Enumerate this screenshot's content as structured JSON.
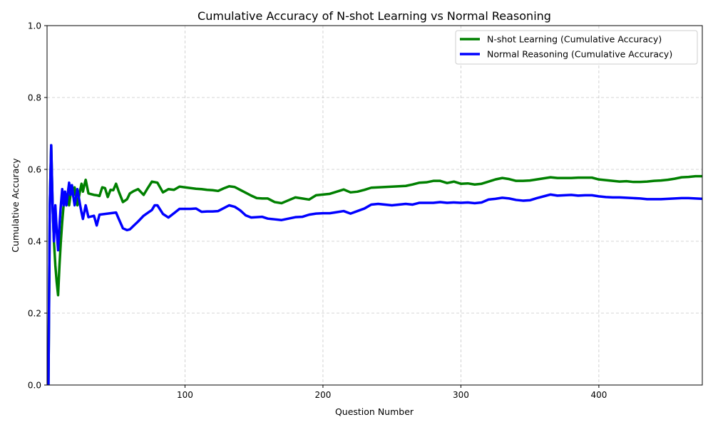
{
  "chart_data": {
    "type": "line",
    "title": "Cumulative Accuracy of N-shot Learning vs Normal Reasoning",
    "xlabel": "Question Number",
    "ylabel": "Cumulative Accuracy",
    "xlim": [
      0,
      475
    ],
    "ylim": [
      0,
      1
    ],
    "xticks": [
      100,
      200,
      300,
      400
    ],
    "yticks": [
      0.0,
      0.2,
      0.4,
      0.6,
      0.8,
      1.0
    ],
    "xtick_labels": [
      "100",
      "200",
      "300",
      "400"
    ],
    "ytick_labels": [
      "0.0",
      "0.2",
      "0.4",
      "0.6",
      "0.8",
      "1.0"
    ],
    "grid": true,
    "legend_position": "top-right",
    "series": [
      {
        "name": "N-shot Learning (Cumulative Accuracy)",
        "color": "#008000",
        "points": [
          [
            1,
            0
          ],
          [
            2,
            0.5
          ],
          [
            3,
            0.667
          ],
          [
            4,
            0.5
          ],
          [
            5,
            0.4
          ],
          [
            6,
            0.333
          ],
          [
            7,
            0.286
          ],
          [
            8,
            0.25
          ],
          [
            9,
            0.333
          ],
          [
            10,
            0.4
          ],
          [
            11,
            0.455
          ],
          [
            12,
            0.5
          ],
          [
            13,
            0.538
          ],
          [
            14,
            0.5
          ],
          [
            15,
            0.533
          ],
          [
            16,
            0.5
          ],
          [
            17,
            0.529
          ],
          [
            18,
            0.556
          ],
          [
            19,
            0.526
          ],
          [
            20,
            0.55
          ],
          [
            22,
            0.5
          ],
          [
            24,
            0.542
          ],
          [
            25,
            0.56
          ],
          [
            26,
            0.538
          ],
          [
            27,
            0.556
          ],
          [
            28,
            0.571
          ],
          [
            29,
            0.552
          ],
          [
            30,
            0.533
          ],
          [
            32,
            0.531
          ],
          [
            34,
            0.529
          ],
          [
            36,
            0.528
          ],
          [
            38,
            0.526
          ],
          [
            40,
            0.55
          ],
          [
            42,
            0.548
          ],
          [
            44,
            0.523
          ],
          [
            46,
            0.543
          ],
          [
            48,
            0.542
          ],
          [
            50,
            0.56
          ],
          [
            52,
            0.538
          ],
          [
            55,
            0.509
          ],
          [
            58,
            0.517
          ],
          [
            60,
            0.533
          ],
          [
            63,
            0.54
          ],
          [
            66,
            0.545
          ],
          [
            70,
            0.529
          ],
          [
            73,
            0.548
          ],
          [
            76,
            0.566
          ],
          [
            80,
            0.563
          ],
          [
            84,
            0.536
          ],
          [
            88,
            0.545
          ],
          [
            92,
            0.543
          ],
          [
            96,
            0.552
          ],
          [
            100,
            0.55
          ],
          [
            104,
            0.548
          ],
          [
            108,
            0.546
          ],
          [
            112,
            0.545
          ],
          [
            116,
            0.543
          ],
          [
            120,
            0.542
          ],
          [
            124,
            0.54
          ],
          [
            128,
            0.547
          ],
          [
            132,
            0.553
          ],
          [
            136,
            0.551
          ],
          [
            140,
            0.543
          ],
          [
            144,
            0.535
          ],
          [
            148,
            0.527
          ],
          [
            152,
            0.52
          ],
          [
            156,
            0.519
          ],
          [
            160,
            0.519
          ],
          [
            165,
            0.509
          ],
          [
            170,
            0.506
          ],
          [
            175,
            0.514
          ],
          [
            180,
            0.522
          ],
          [
            185,
            0.519
          ],
          [
            190,
            0.516
          ],
          [
            195,
            0.528
          ],
          [
            200,
            0.53
          ],
          [
            205,
            0.532
          ],
          [
            210,
            0.538
          ],
          [
            215,
            0.544
          ],
          [
            220,
            0.536
          ],
          [
            225,
            0.538
          ],
          [
            230,
            0.543
          ],
          [
            235,
            0.549
          ],
          [
            240,
            0.55
          ],
          [
            245,
            0.551
          ],
          [
            250,
            0.552
          ],
          [
            255,
            0.553
          ],
          [
            260,
            0.554
          ],
          [
            265,
            0.558
          ],
          [
            270,
            0.563
          ],
          [
            275,
            0.564
          ],
          [
            280,
            0.568
          ],
          [
            285,
            0.568
          ],
          [
            290,
            0.562
          ],
          [
            295,
            0.566
          ],
          [
            300,
            0.56
          ],
          [
            305,
            0.561
          ],
          [
            310,
            0.558
          ],
          [
            315,
            0.56
          ],
          [
            320,
            0.566
          ],
          [
            325,
            0.572
          ],
          [
            330,
            0.576
          ],
          [
            335,
            0.573
          ],
          [
            340,
            0.568
          ],
          [
            345,
            0.568
          ],
          [
            350,
            0.569
          ],
          [
            355,
            0.572
          ],
          [
            360,
            0.575
          ],
          [
            365,
            0.578
          ],
          [
            370,
            0.576
          ],
          [
            375,
            0.576
          ],
          [
            380,
            0.576
          ],
          [
            385,
            0.577
          ],
          [
            390,
            0.577
          ],
          [
            395,
            0.577
          ],
          [
            400,
            0.572
          ],
          [
            405,
            0.57
          ],
          [
            410,
            0.568
          ],
          [
            415,
            0.566
          ],
          [
            420,
            0.567
          ],
          [
            425,
            0.565
          ],
          [
            430,
            0.565
          ],
          [
            435,
            0.566
          ],
          [
            440,
            0.568
          ],
          [
            445,
            0.569
          ],
          [
            450,
            0.571
          ],
          [
            455,
            0.574
          ],
          [
            460,
            0.578
          ],
          [
            465,
            0.579
          ],
          [
            470,
            0.581
          ],
          [
            475,
            0.581
          ]
        ]
      },
      {
        "name": "Normal Reasoning (Cumulative Accuracy)",
        "color": "#0000ff",
        "points": [
          [
            1,
            0
          ],
          [
            2,
            0.5
          ],
          [
            3,
            0.667
          ],
          [
            4,
            0.5
          ],
          [
            5,
            0.4
          ],
          [
            6,
            0.5
          ],
          [
            7,
            0.429
          ],
          [
            8,
            0.375
          ],
          [
            9,
            0.444
          ],
          [
            10,
            0.5
          ],
          [
            11,
            0.545
          ],
          [
            12,
            0.5
          ],
          [
            13,
            0.538
          ],
          [
            14,
            0.5
          ],
          [
            15,
            0.533
          ],
          [
            16,
            0.563
          ],
          [
            17,
            0.529
          ],
          [
            18,
            0.556
          ],
          [
            19,
            0.526
          ],
          [
            20,
            0.5
          ],
          [
            22,
            0.545
          ],
          [
            24,
            0.5
          ],
          [
            25,
            0.48
          ],
          [
            26,
            0.462
          ],
          [
            27,
            0.481
          ],
          [
            28,
            0.5
          ],
          [
            30,
            0.467
          ],
          [
            32,
            0.469
          ],
          [
            34,
            0.471
          ],
          [
            36,
            0.444
          ],
          [
            38,
            0.474
          ],
          [
            40,
            0.475
          ],
          [
            42,
            0.476
          ],
          [
            44,
            0.477
          ],
          [
            46,
            0.478
          ],
          [
            48,
            0.479
          ],
          [
            50,
            0.48
          ],
          [
            52,
            0.462
          ],
          [
            55,
            0.436
          ],
          [
            58,
            0.431
          ],
          [
            60,
            0.433
          ],
          [
            63,
            0.444
          ],
          [
            66,
            0.455
          ],
          [
            70,
            0.471
          ],
          [
            73,
            0.479
          ],
          [
            76,
            0.487
          ],
          [
            78,
            0.5
          ],
          [
            80,
            0.5
          ],
          [
            84,
            0.476
          ],
          [
            88,
            0.466
          ],
          [
            92,
            0.478
          ],
          [
            96,
            0.49
          ],
          [
            100,
            0.49
          ],
          [
            104,
            0.49
          ],
          [
            108,
            0.491
          ],
          [
            112,
            0.482
          ],
          [
            116,
            0.483
          ],
          [
            120,
            0.483
          ],
          [
            124,
            0.484
          ],
          [
            128,
            0.492
          ],
          [
            132,
            0.5
          ],
          [
            136,
            0.496
          ],
          [
            140,
            0.486
          ],
          [
            144,
            0.472
          ],
          [
            148,
            0.466
          ],
          [
            152,
            0.467
          ],
          [
            156,
            0.468
          ],
          [
            160,
            0.463
          ],
          [
            165,
            0.461
          ],
          [
            170,
            0.459
          ],
          [
            175,
            0.463
          ],
          [
            180,
            0.467
          ],
          [
            185,
            0.468
          ],
          [
            190,
            0.474
          ],
          [
            195,
            0.477
          ],
          [
            200,
            0.478
          ],
          [
            205,
            0.478
          ],
          [
            210,
            0.481
          ],
          [
            215,
            0.484
          ],
          [
            220,
            0.477
          ],
          [
            225,
            0.484
          ],
          [
            230,
            0.491
          ],
          [
            235,
            0.502
          ],
          [
            240,
            0.504
          ],
          [
            245,
            0.502
          ],
          [
            250,
            0.5
          ],
          [
            255,
            0.502
          ],
          [
            260,
            0.504
          ],
          [
            265,
            0.502
          ],
          [
            270,
            0.507
          ],
          [
            275,
            0.507
          ],
          [
            280,
            0.507
          ],
          [
            285,
            0.509
          ],
          [
            290,
            0.507
          ],
          [
            295,
            0.508
          ],
          [
            300,
            0.507
          ],
          [
            305,
            0.508
          ],
          [
            310,
            0.506
          ],
          [
            315,
            0.508
          ],
          [
            320,
            0.516
          ],
          [
            325,
            0.518
          ],
          [
            330,
            0.521
          ],
          [
            335,
            0.519
          ],
          [
            340,
            0.515
          ],
          [
            345,
            0.513
          ],
          [
            350,
            0.514
          ],
          [
            355,
            0.52
          ],
          [
            360,
            0.525
          ],
          [
            365,
            0.53
          ],
          [
            370,
            0.527
          ],
          [
            375,
            0.528
          ],
          [
            380,
            0.529
          ],
          [
            385,
            0.527
          ],
          [
            390,
            0.528
          ],
          [
            395,
            0.528
          ],
          [
            400,
            0.525
          ],
          [
            405,
            0.523
          ],
          [
            410,
            0.522
          ],
          [
            415,
            0.522
          ],
          [
            420,
            0.521
          ],
          [
            425,
            0.52
          ],
          [
            430,
            0.519
          ],
          [
            435,
            0.517
          ],
          [
            440,
            0.517
          ],
          [
            445,
            0.517
          ],
          [
            450,
            0.518
          ],
          [
            455,
            0.519
          ],
          [
            460,
            0.52
          ],
          [
            465,
            0.52
          ],
          [
            470,
            0.519
          ],
          [
            475,
            0.518
          ]
        ]
      }
    ]
  }
}
